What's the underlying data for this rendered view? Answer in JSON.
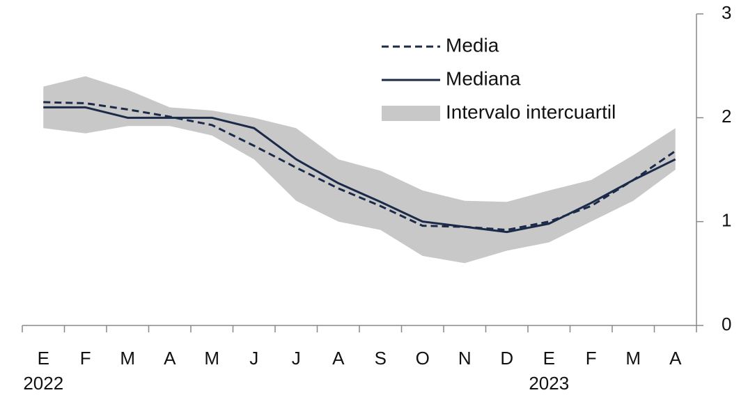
{
  "chart_data": {
    "type": "line",
    "categories": [
      "E",
      "F",
      "M",
      "A",
      "M",
      "J",
      "J",
      "A",
      "S",
      "O",
      "N",
      "D",
      "E",
      "F",
      "M",
      "A"
    ],
    "years": [
      "2022",
      null,
      null,
      null,
      null,
      null,
      null,
      null,
      null,
      null,
      null,
      null,
      "2023",
      null,
      null,
      null
    ],
    "series": [
      {
        "name": "Media",
        "color": "#1c2a4a",
        "dash": true,
        "values": [
          2.15,
          2.14,
          2.08,
          2.01,
          1.93,
          1.73,
          1.52,
          1.32,
          1.15,
          0.96,
          0.95,
          0.92,
          1.0,
          1.15,
          1.4,
          1.68
        ]
      },
      {
        "name": "Mediana",
        "color": "#1c2a4a",
        "dash": false,
        "values": [
          2.1,
          2.1,
          2.0,
          2.0,
          2.0,
          1.9,
          1.6,
          1.37,
          1.19,
          1.0,
          0.95,
          0.9,
          0.98,
          1.18,
          1.4,
          1.6
        ]
      },
      {
        "name": "Intervalo intercuartil",
        "color": "#c8c8c8",
        "band": true,
        "high": [
          2.3,
          2.4,
          2.27,
          2.1,
          2.07,
          2.0,
          1.9,
          1.6,
          1.49,
          1.3,
          1.2,
          1.19,
          1.3,
          1.4,
          1.64,
          1.9
        ],
        "low": [
          1.9,
          1.85,
          1.92,
          1.92,
          1.83,
          1.6,
          1.2,
          1.0,
          0.92,
          0.67,
          0.6,
          0.72,
          0.8,
          1.0,
          1.2,
          1.5
        ]
      }
    ],
    "ylim": [
      0,
      3
    ],
    "yticks": [
      0,
      1,
      2,
      3
    ],
    "y_axis_side": "right"
  }
}
